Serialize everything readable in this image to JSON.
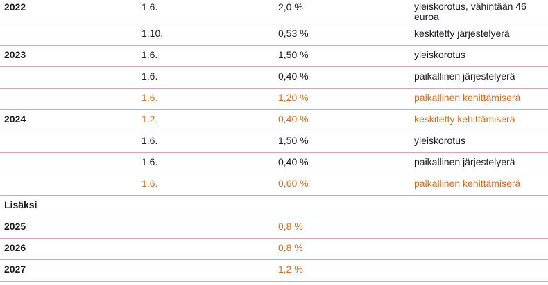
{
  "rows": [
    {
      "year": "2022",
      "date": "1.6.",
      "pct": "2,0 %",
      "desc": "yleiskorotus, vähintään 46 euroa",
      "highlight": false
    },
    {
      "year": "",
      "date": "1.10.",
      "pct": "0,53 %",
      "desc": "keskitetty järjestelyerä",
      "highlight": false
    },
    {
      "year": "2023",
      "date": "1.6.",
      "pct": "1,50 %",
      "desc": "yleiskorotus",
      "highlight": false
    },
    {
      "year": "",
      "date": "1.6.",
      "pct": "0,40 %",
      "desc": "paikallinen järjestelyerä",
      "highlight": false
    },
    {
      "year": "",
      "date": "1.6.",
      "pct": "1,20 %",
      "desc": "paikallinen kehittämiserä",
      "highlight": true
    },
    {
      "year": "2024",
      "date": "1.2.",
      "pct": "0,40 %",
      "desc": "keskitetty kehittämiserä",
      "highlight": true
    },
    {
      "year": "",
      "date": "1.6.",
      "pct": "1,50 %",
      "desc": "yleiskorotus",
      "highlight": false
    },
    {
      "year": "",
      "date": "1.6.",
      "pct": "0,40 %",
      "desc": "paikallinen järjestelyerä",
      "highlight": false
    },
    {
      "year": "",
      "date": "1.6.",
      "pct": "0,60 %",
      "desc": "paikallinen kehittämiserä",
      "highlight": true
    },
    {
      "year": "Lisäksi",
      "date": "",
      "pct": "",
      "desc": "",
      "highlight": false
    },
    {
      "year": "2025",
      "date": "",
      "pct": "0,8 %",
      "desc": "",
      "highlight": true
    },
    {
      "year": "2026",
      "date": "",
      "pct": "0,8 %",
      "desc": "",
      "highlight": true
    },
    {
      "year": "2027",
      "date": "",
      "pct": "1,2 %",
      "desc": "",
      "highlight": true
    }
  ],
  "colors": {
    "highlight": "#d66b1f",
    "text": "#1a1a1a",
    "border": "#d9a6b3"
  }
}
